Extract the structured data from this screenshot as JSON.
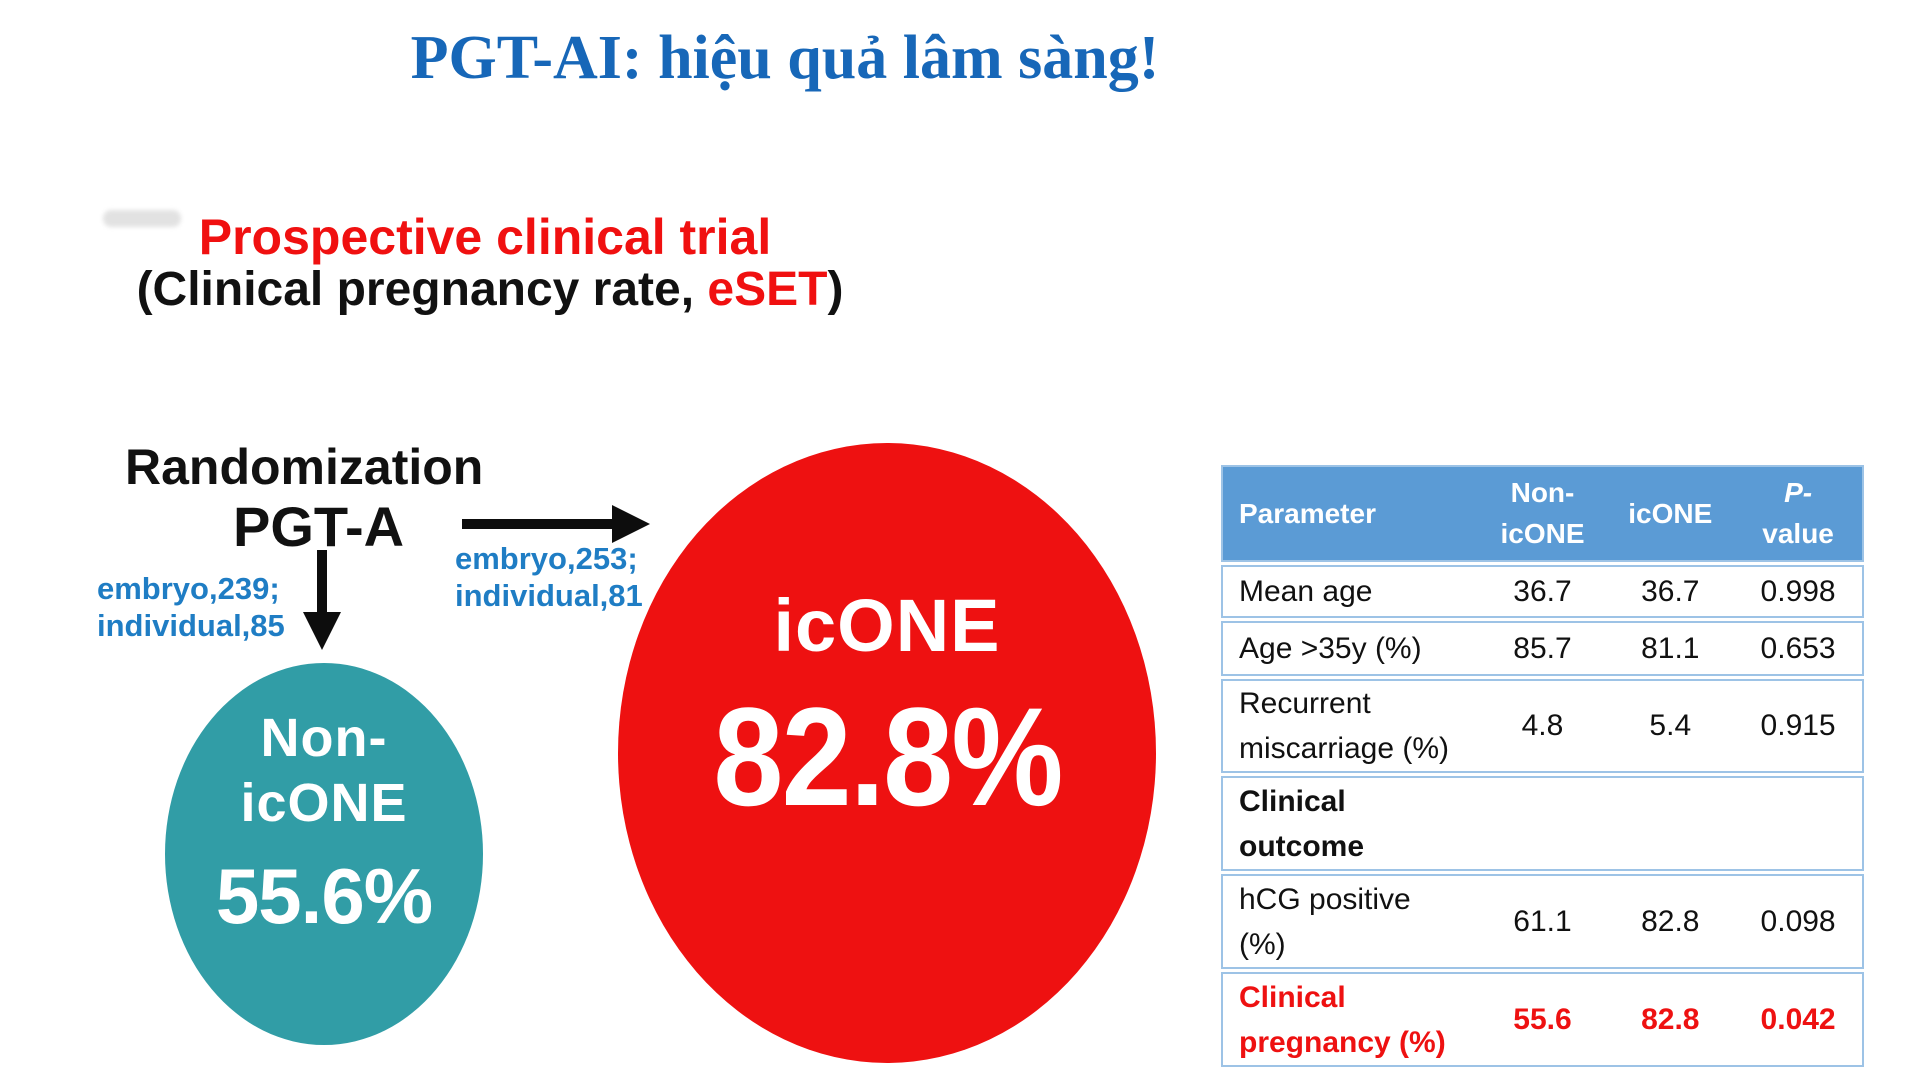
{
  "title": {
    "text": "PGT-AI: hiệu quả lâm sàng!",
    "color": "#1767b8"
  },
  "diagram": {
    "heading_line1": "Prospective clinical trial",
    "heading_line2_prefix": "(Clinical pregnancy rate, ",
    "heading_line2_highlight": "eSET",
    "heading_line2_suffix": ")",
    "randomization_label": "Randomization",
    "pgta_label": "PGT-A",
    "left_branch": {
      "line1": "embryo,239;",
      "line2": "individual,85"
    },
    "right_branch": {
      "line1": "embryo,253;",
      "line2": "individual,81"
    },
    "non_icone_circle": {
      "line1": "Non-",
      "line2": "icONE",
      "value": "55.6%",
      "color": "#319da6"
    },
    "icone_circle": {
      "label": "icONE",
      "value": "82.8%",
      "color": "#ee1111"
    }
  },
  "table": {
    "header": {
      "col1": "Parameter",
      "col2_line1": "Non-",
      "col2_line2": "icONE",
      "col3": "icONE",
      "col4_line1": "P-",
      "col4_line2": "value",
      "bg": "#5b9bd5"
    },
    "rows": [
      {
        "param": "Mean age",
        "non_icone": "36.7",
        "icone": "36.7",
        "p_value": "0.998",
        "style": "normal"
      },
      {
        "param": "Age >35y (%)",
        "non_icone": "85.7",
        "icone": "81.1",
        "p_value": "0.653",
        "style": "normal"
      },
      {
        "param": "Recurrent miscarriage (%)",
        "non_icone": "4.8",
        "icone": "5.4",
        "p_value": "0.915",
        "style": "normal"
      },
      {
        "param": "Clinical outcome",
        "non_icone": "",
        "icone": "",
        "p_value": "",
        "style": "section"
      },
      {
        "param": "hCG positive (%)",
        "non_icone": "61.1",
        "icone": "82.8",
        "p_value": "0.098",
        "style": "normal"
      },
      {
        "param": "Clinical pregnancy (%)",
        "non_icone": "55.6",
        "icone": "82.8",
        "p_value": "0.042",
        "style": "highlight"
      }
    ]
  }
}
